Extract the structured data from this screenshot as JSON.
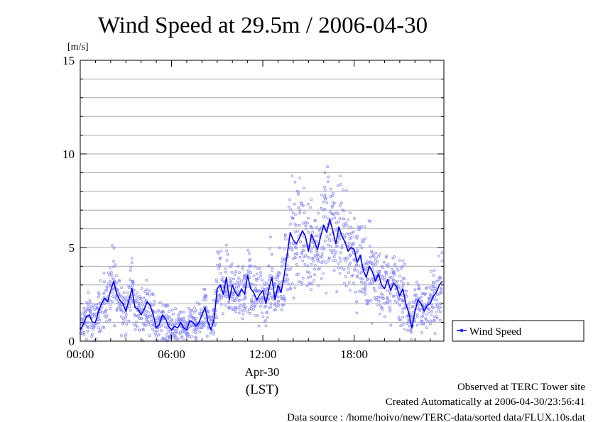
{
  "chart_data": {
    "type": "line",
    "title": "Wind Speed at 29.5m / 2006-04-30",
    "ylabel": "[m/s]",
    "xlabel": "(LST)",
    "date_label": "Apr-30",
    "xlim": [
      0,
      23.9
    ],
    "ylim": [
      0,
      15
    ],
    "x_ticks": [
      {
        "value": 0,
        "label": "00:00"
      },
      {
        "value": 6,
        "label": "06:00"
      },
      {
        "value": 12,
        "label": "12:00"
      },
      {
        "value": 18,
        "label": "18:00"
      }
    ],
    "y_ticks": [
      {
        "value": 0,
        "label": "0"
      },
      {
        "value": 5,
        "label": "5"
      },
      {
        "value": 10,
        "label": "10"
      },
      {
        "value": 15,
        "label": "15"
      }
    ],
    "grid": true,
    "legend_position": "right",
    "series": [
      {
        "name": "Wind Speed",
        "color": "#0000ff",
        "scatter_color": "#8a8aff",
        "x": [
          0.0,
          0.2,
          0.4,
          0.6,
          0.8,
          1.0,
          1.2,
          1.4,
          1.6,
          1.8,
          2.0,
          2.2,
          2.4,
          2.6,
          2.8,
          3.0,
          3.2,
          3.4,
          3.6,
          3.8,
          4.0,
          4.2,
          4.4,
          4.6,
          4.8,
          5.0,
          5.2,
          5.4,
          5.6,
          5.8,
          6.0,
          6.2,
          6.4,
          6.6,
          6.8,
          7.0,
          7.2,
          7.4,
          7.6,
          7.8,
          8.0,
          8.2,
          8.4,
          8.6,
          8.8,
          9.0,
          9.2,
          9.4,
          9.6,
          9.8,
          10.0,
          10.2,
          10.4,
          10.6,
          10.8,
          11.0,
          11.2,
          11.4,
          11.6,
          11.8,
          12.0,
          12.2,
          12.4,
          12.6,
          12.8,
          13.0,
          13.2,
          13.4,
          13.6,
          13.8,
          14.0,
          14.2,
          14.4,
          14.6,
          14.8,
          15.0,
          15.2,
          15.4,
          15.6,
          15.8,
          16.0,
          16.2,
          16.4,
          16.6,
          16.8,
          17.0,
          17.2,
          17.4,
          17.6,
          17.8,
          18.0,
          18.2,
          18.4,
          18.6,
          18.8,
          19.0,
          19.2,
          19.4,
          19.6,
          19.8,
          20.0,
          20.2,
          20.4,
          20.6,
          20.8,
          21.0,
          21.2,
          21.4,
          21.6,
          21.8,
          22.0,
          22.2,
          22.4,
          22.6,
          22.8,
          23.0,
          23.2,
          23.4,
          23.6,
          23.8
        ],
        "values": [
          0.6,
          0.9,
          1.3,
          1.4,
          1.0,
          1.0,
          1.6,
          2.0,
          2.3,
          2.1,
          2.7,
          3.2,
          2.5,
          2.2,
          2.0,
          1.6,
          2.2,
          2.8,
          1.8,
          1.7,
          1.4,
          1.7,
          2.1,
          1.9,
          1.4,
          0.7,
          0.9,
          1.4,
          1.2,
          0.8,
          0.6,
          0.8,
          0.7,
          1.0,
          0.7,
          0.6,
          1.1,
          1.0,
          0.8,
          1.0,
          1.4,
          1.8,
          1.0,
          0.6,
          1.2,
          2.8,
          3.0,
          2.5,
          3.4,
          2.2,
          3.0,
          2.6,
          2.4,
          2.8,
          2.5,
          3.5,
          2.8,
          2.6,
          2.2,
          2.5,
          2.7,
          2.0,
          2.8,
          3.4,
          2.2,
          3.0,
          2.6,
          3.5,
          4.6,
          5.8,
          5.4,
          5.2,
          5.5,
          5.9,
          5.6,
          4.8,
          5.7,
          5.3,
          4.9,
          5.6,
          6.2,
          5.8,
          6.5,
          5.9,
          5.2,
          6.1,
          5.6,
          5.3,
          4.8,
          5.0,
          4.9,
          4.2,
          4.6,
          3.8,
          3.4,
          4.0,
          3.7,
          3.2,
          3.6,
          3.0,
          2.8,
          3.3,
          2.7,
          3.1,
          2.9,
          2.4,
          2.8,
          2.0,
          1.5,
          0.7,
          1.6,
          2.2,
          2.0,
          1.6,
          1.9,
          2.0,
          2.4,
          2.6,
          3.0,
          3.2
        ]
      }
    ],
    "notes": [
      "Observed at TERC Tower site",
      "Created Automatically at 2006-04-30/23:56:41",
      "Data source : /home/hoivo/new/TERC-data/sorted  data/FLUX.10s.dat"
    ]
  }
}
